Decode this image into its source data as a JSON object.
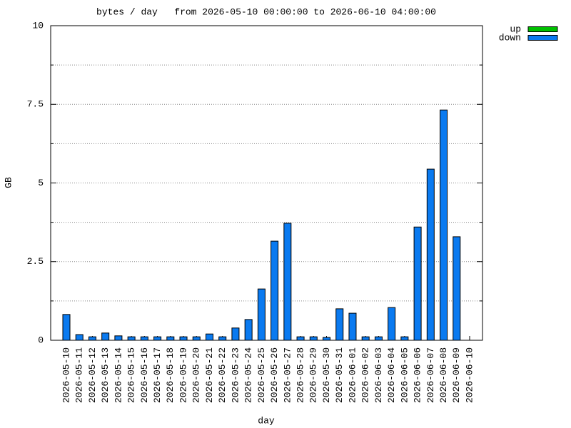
{
  "chart_data": {
    "type": "bar",
    "title": "bytes / day   from 2026-05-10 00:00:00 to 2026-06-10 04:00:00",
    "x_label": "day",
    "y_label": "GB",
    "categories": [
      "2026-05-10",
      "2026-05-11",
      "2026-05-12",
      "2026-05-13",
      "2026-05-14",
      "2026-05-15",
      "2026-05-16",
      "2026-05-17",
      "2026-05-18",
      "2026-05-19",
      "2026-05-20",
      "2026-05-21",
      "2026-05-22",
      "2026-05-23",
      "2026-05-24",
      "2026-05-25",
      "2026-05-26",
      "2026-05-27",
      "2026-05-28",
      "2026-05-29",
      "2026-05-30",
      "2026-05-31",
      "2026-06-01",
      "2026-06-02",
      "2026-06-03",
      "2026-06-04",
      "2026-06-05",
      "2026-06-06",
      "2026-06-07",
      "2026-06-08",
      "2026-06-09",
      "2026-06-10"
    ],
    "series": [
      {
        "name": "up",
        "color": "#00c000",
        "values": [
          0,
          0,
          0,
          0,
          0,
          0,
          0,
          0,
          0,
          0,
          0,
          0,
          0,
          0,
          0,
          0,
          0,
          0,
          0,
          0,
          0,
          0,
          0,
          0,
          0,
          0,
          0,
          0,
          0,
          0,
          0,
          null
        ]
      },
      {
        "name": "down",
        "color": "#0a7af0",
        "values": [
          0.82,
          0.18,
          0.11,
          0.23,
          0.14,
          0.11,
          0.11,
          0.11,
          0.11,
          0.11,
          0.11,
          0.2,
          0.11,
          0.39,
          0.66,
          1.63,
          3.15,
          3.72,
          0.11,
          0.11,
          0.09,
          1.0,
          0.86,
          0.11,
          0.11,
          1.04,
          0.11,
          3.6,
          5.44,
          7.32,
          3.29,
          null
        ]
      }
    ],
    "ylim": [
      0,
      10
    ],
    "yticks": [
      0,
      2.5,
      5,
      7.5,
      10
    ],
    "minor_yticks": [
      1.25,
      3.75,
      6.25,
      8.75
    ],
    "grid": true,
    "legend": "top-right"
  }
}
